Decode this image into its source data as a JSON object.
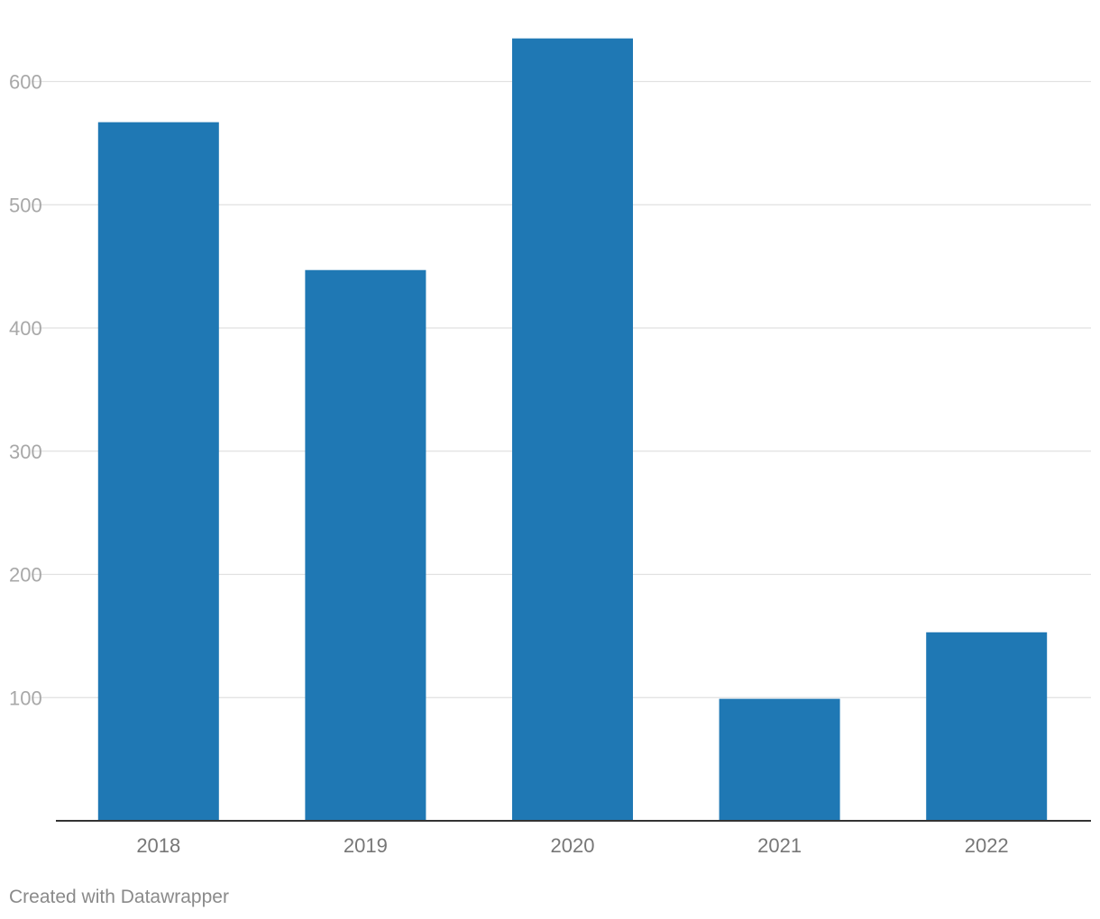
{
  "chart_data": {
    "type": "bar",
    "categories": [
      "2018",
      "2019",
      "2020",
      "2021",
      "2022"
    ],
    "values": [
      567,
      447,
      635,
      99,
      153
    ],
    "ylim": [
      0,
      660
    ],
    "yticks": [
      100,
      200,
      300,
      400,
      500,
      600
    ],
    "ytick_labels": [
      "100",
      "200",
      "300",
      "400",
      "500",
      "600"
    ],
    "grid": true,
    "legend": "none",
    "bar_color": "#1f78b4"
  },
  "footer": {
    "credit": "Created with Datawrapper"
  }
}
